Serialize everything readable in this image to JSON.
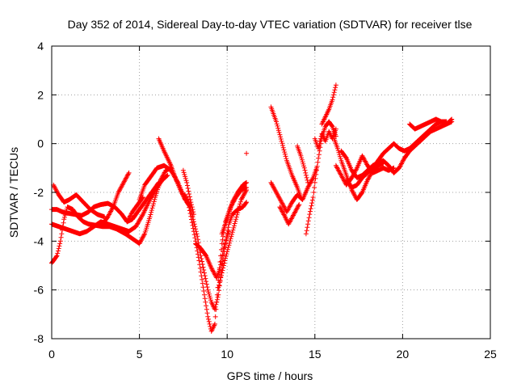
{
  "chart_data": {
    "type": "scatter",
    "title": "Day 352 of 2014, Sidereal Day-to-day VTEC variation (SDTVAR) for receiver tlse",
    "xlabel": "GPS time / hours",
    "ylabel": "SDTVAR / TECUs",
    "xlim": [
      0,
      25
    ],
    "ylim": [
      -8,
      4
    ],
    "xticks": [
      0,
      5,
      10,
      15,
      20,
      25
    ],
    "yticks": [
      -8,
      -6,
      -4,
      -2,
      0,
      2,
      4
    ],
    "grid": true,
    "marker": "plus",
    "color": "#ff0000",
    "tracks": [
      [
        [
          0.0,
          -4.9
        ],
        [
          0.3,
          -4.6
        ],
        [
          0.5,
          -4.0
        ],
        [
          0.7,
          -3.1
        ],
        [
          0.9,
          -2.6
        ],
        [
          1.2,
          -2.7
        ],
        [
          1.5,
          -3.0
        ],
        [
          1.8,
          -3.2
        ],
        [
          2.1,
          -3.3
        ],
        [
          2.5,
          -3.35
        ],
        [
          2.9,
          -3.4
        ],
        [
          3.3,
          -3.4
        ],
        [
          3.7,
          -3.5
        ],
        [
          4.2,
          -3.7
        ],
        [
          4.6,
          -3.9
        ],
        [
          5.0,
          -4.1
        ],
        [
          5.3,
          -3.7
        ],
        [
          5.6,
          -3.0
        ],
        [
          5.9,
          -2.2
        ],
        [
          6.2,
          -1.5
        ],
        [
          6.5,
          -1.1
        ],
        [
          6.8,
          -1.0
        ]
      ],
      [
        [
          0.0,
          -3.3
        ],
        [
          0.4,
          -3.4
        ],
        [
          0.8,
          -3.5
        ],
        [
          1.2,
          -3.6
        ],
        [
          1.6,
          -3.7
        ],
        [
          2.0,
          -3.6
        ],
        [
          2.4,
          -3.4
        ],
        [
          2.8,
          -3.2
        ],
        [
          3.2,
          -3.3
        ],
        [
          3.6,
          -3.4
        ],
        [
          4.0,
          -3.5
        ],
        [
          4.4,
          -3.6
        ],
        [
          4.8,
          -3.4
        ],
        [
          5.2,
          -2.9
        ],
        [
          5.6,
          -2.3
        ],
        [
          6.0,
          -1.8
        ],
        [
          6.3,
          -1.5
        ],
        [
          6.6,
          -1.3
        ]
      ],
      [
        [
          0.0,
          -2.7
        ],
        [
          0.3,
          -2.7
        ],
        [
          0.6,
          -2.8
        ],
        [
          0.9,
          -2.85
        ],
        [
          1.3,
          -2.9
        ],
        [
          1.7,
          -2.95
        ],
        [
          2.1,
          -2.8
        ],
        [
          2.4,
          -2.6
        ],
        [
          2.8,
          -2.5
        ],
        [
          3.2,
          -2.45
        ],
        [
          3.6,
          -2.6
        ],
        [
          4.0,
          -2.9
        ],
        [
          4.3,
          -3.2
        ],
        [
          4.6,
          -3.1
        ],
        [
          5.0,
          -2.7
        ],
        [
          5.4,
          -2.3
        ],
        [
          5.8,
          -1.9
        ],
        [
          6.1,
          -1.6
        ]
      ],
      [
        [
          0.1,
          -1.7
        ],
        [
          0.4,
          -2.1
        ],
        [
          0.7,
          -2.4
        ],
        [
          1.0,
          -2.3
        ],
        [
          1.4,
          -2.1
        ],
        [
          1.8,
          -2.4
        ],
        [
          2.2,
          -2.7
        ],
        [
          2.6,
          -2.9
        ],
        [
          3.0,
          -3.0
        ]
      ],
      [
        [
          2.9,
          -3.3
        ],
        [
          3.2,
          -3.0
        ],
        [
          3.5,
          -2.6
        ],
        [
          3.8,
          -2.0
        ],
        [
          4.1,
          -1.6
        ],
        [
          4.4,
          -1.2
        ]
      ],
      [
        [
          4.3,
          -3.2
        ],
        [
          4.6,
          -2.8
        ],
        [
          4.9,
          -2.5
        ],
        [
          5.2,
          -2.2
        ]
      ],
      [
        [
          5.0,
          -2.3
        ],
        [
          5.3,
          -1.7
        ],
        [
          5.7,
          -1.3
        ],
        [
          6.0,
          -1.0
        ],
        [
          6.4,
          -0.9
        ],
        [
          6.8,
          -1.1
        ],
        [
          7.2,
          -1.6
        ],
        [
          7.6,
          -2.3
        ]
      ],
      [
        [
          6.1,
          0.2
        ],
        [
          6.4,
          -0.3
        ],
        [
          6.8,
          -0.9
        ],
        [
          7.1,
          -1.5
        ],
        [
          7.4,
          -2.0
        ],
        [
          7.7,
          -2.4
        ],
        [
          7.9,
          -2.6
        ]
      ],
      [
        [
          7.6,
          -2.1
        ],
        [
          7.9,
          -2.6
        ],
        [
          8.1,
          -3.2
        ],
        [
          8.3,
          -3.8
        ],
        [
          8.5,
          -4.6
        ],
        [
          8.7,
          -5.3
        ],
        [
          8.9,
          -6.0
        ],
        [
          9.1,
          -6.5
        ],
        [
          9.3,
          -6.8
        ],
        [
          9.5,
          -6.2
        ],
        [
          9.7,
          -5.1
        ],
        [
          9.9,
          -4.1
        ],
        [
          10.1,
          -3.3
        ],
        [
          10.3,
          -2.9
        ],
        [
          10.6,
          -2.7
        ],
        [
          10.9,
          -2.6
        ],
        [
          11.1,
          -2.4
        ]
      ],
      [
        [
          7.8,
          -2.5
        ],
        [
          8.1,
          -3.6
        ],
        [
          8.4,
          -4.8
        ],
        [
          8.7,
          -6.2
        ],
        [
          8.9,
          -7.1
        ],
        [
          9.1,
          -7.7
        ],
        [
          9.3,
          -7.4
        ],
        [
          9.5,
          -5.6
        ],
        [
          9.7,
          -4.1
        ],
        [
          9.9,
          -3.2
        ],
        [
          10.2,
          -2.6
        ],
        [
          10.5,
          -2.2
        ],
        [
          10.8,
          -1.9
        ],
        [
          11.1,
          -1.8
        ]
      ],
      [
        [
          7.5,
          -1.1
        ],
        [
          7.7,
          -1.6
        ],
        [
          7.9,
          -2.3
        ],
        [
          8.1,
          -2.9
        ]
      ],
      [
        [
          8.2,
          -4.1
        ],
        [
          8.5,
          -4.3
        ],
        [
          8.8,
          -4.6
        ],
        [
          9.1,
          -5.1
        ],
        [
          9.4,
          -5.5
        ],
        [
          9.6,
          -5.1
        ],
        [
          9.8,
          -4.3
        ],
        [
          10.1,
          -3.6
        ]
      ],
      [
        [
          9.5,
          -5.9
        ],
        [
          9.7,
          -5.3
        ],
        [
          9.9,
          -4.7
        ],
        [
          10.2,
          -3.9
        ],
        [
          10.5,
          -3.1
        ],
        [
          10.8,
          -2.3
        ],
        [
          11.1,
          -1.9
        ]
      ],
      [
        [
          9.7,
          -3.7
        ],
        [
          10.0,
          -3.1
        ],
        [
          10.3,
          -2.4
        ],
        [
          10.6,
          -2.0
        ],
        [
          10.9,
          -1.7
        ],
        [
          11.1,
          -1.6
        ]
      ],
      [
        [
          11.1,
          -0.4
        ]
      ],
      [
        [
          12.5,
          1.5
        ],
        [
          12.8,
          0.9
        ],
        [
          13.1,
          0.1
        ],
        [
          13.4,
          -0.7
        ],
        [
          13.7,
          -1.3
        ],
        [
          14.0,
          -1.8
        ],
        [
          14.2,
          -2.2
        ]
      ],
      [
        [
          12.5,
          -1.6
        ],
        [
          12.8,
          -2.0
        ],
        [
          13.1,
          -2.4
        ],
        [
          13.4,
          -2.8
        ],
        [
          13.7,
          -2.4
        ],
        [
          14.0,
          -2.1
        ],
        [
          14.3,
          -2.3
        ],
        [
          14.6,
          -1.8
        ],
        [
          14.9,
          -1.4
        ],
        [
          15.1,
          -1.0
        ]
      ],
      [
        [
          13.0,
          -2.6
        ],
        [
          13.3,
          -3.0
        ],
        [
          13.5,
          -3.3
        ],
        [
          13.8,
          -2.9
        ],
        [
          14.1,
          -2.5
        ]
      ],
      [
        [
          14.0,
          -0.1
        ],
        [
          14.2,
          -0.5
        ],
        [
          14.4,
          -1.0
        ],
        [
          14.6,
          -1.6
        ]
      ],
      [
        [
          14.5,
          -3.7
        ],
        [
          14.7,
          -2.9
        ],
        [
          14.9,
          -2.2
        ],
        [
          15.0,
          -1.6
        ],
        [
          15.2,
          -0.6
        ],
        [
          15.4,
          0.3
        ],
        [
          15.6,
          0.7
        ],
        [
          15.8,
          0.9
        ],
        [
          16.0,
          0.7
        ],
        [
          16.2,
          0.3
        ]
      ],
      [
        [
          15.0,
          0.2
        ],
        [
          15.2,
          -0.2
        ],
        [
          15.4,
          0.4
        ],
        [
          15.6,
          0.1
        ],
        [
          15.8,
          0.5
        ],
        [
          16.0,
          0.2
        ],
        [
          16.2,
          0.6
        ]
      ],
      [
        [
          15.4,
          0.8
        ],
        [
          15.6,
          1.1
        ],
        [
          15.8,
          1.4
        ],
        [
          16.0,
          1.8
        ],
        [
          16.2,
          2.4
        ]
      ],
      [
        [
          16.1,
          0.2
        ],
        [
          16.3,
          -0.2
        ],
        [
          16.5,
          -0.7
        ],
        [
          16.8,
          -1.3
        ],
        [
          17.1,
          -1.9
        ],
        [
          17.4,
          -2.3
        ],
        [
          17.7,
          -2.0
        ],
        [
          18.0,
          -1.5
        ],
        [
          18.3,
          -1.1
        ],
        [
          18.6,
          -0.9
        ],
        [
          18.9,
          -0.8
        ]
      ],
      [
        [
          16.5,
          -0.3
        ],
        [
          16.8,
          -0.6
        ],
        [
          17.1,
          -1.1
        ],
        [
          17.4,
          -1.4
        ],
        [
          17.7,
          -1.3
        ],
        [
          18.0,
          -1.1
        ],
        [
          18.3,
          -0.9
        ],
        [
          18.6,
          -0.8
        ],
        [
          18.9,
          -0.7
        ],
        [
          19.2,
          -0.9
        ],
        [
          19.5,
          -1.2
        ],
        [
          19.8,
          -1.0
        ],
        [
          20.1,
          -0.6
        ],
        [
          20.4,
          -0.3
        ],
        [
          20.7,
          -0.1
        ],
        [
          21.0,
          0.1
        ],
        [
          21.3,
          0.3
        ],
        [
          21.6,
          0.5
        ],
        [
          21.9,
          0.6
        ],
        [
          22.2,
          0.7
        ],
        [
          22.5,
          0.8
        ],
        [
          22.8,
          1.0
        ]
      ],
      [
        [
          16.8,
          -1.5
        ],
        [
          17.1,
          -1.8
        ],
        [
          17.4,
          -1.7
        ],
        [
          17.7,
          -1.4
        ],
        [
          18.0,
          -1.2
        ],
        [
          18.3,
          -1.0
        ],
        [
          18.6,
          -0.7
        ],
        [
          18.9,
          -0.4
        ],
        [
          19.2,
          -0.2
        ],
        [
          19.5,
          0.0
        ],
        [
          19.8,
          -0.2
        ],
        [
          20.1,
          -0.3
        ],
        [
          20.4,
          -0.2
        ],
        [
          20.7,
          0.0
        ],
        [
          21.0,
          0.2
        ],
        [
          21.3,
          0.4
        ],
        [
          21.6,
          0.6
        ],
        [
          21.9,
          0.8
        ],
        [
          22.2,
          0.9
        ],
        [
          22.5,
          0.9
        ]
      ],
      [
        [
          16.2,
          -0.9
        ],
        [
          16.5,
          -1.3
        ],
        [
          16.8,
          -1.7
        ],
        [
          17.1,
          -1.4
        ],
        [
          17.4,
          -1.0
        ],
        [
          17.7,
          -0.5
        ],
        [
          18.0,
          -0.9
        ],
        [
          18.3,
          -1.2
        ],
        [
          18.6,
          -1.1
        ],
        [
          18.9,
          -1.0
        ],
        [
          19.2,
          -1.1
        ],
        [
          19.5,
          -1.0
        ]
      ],
      [
        [
          20.4,
          0.8
        ],
        [
          20.7,
          0.6
        ],
        [
          21.0,
          0.7
        ],
        [
          21.3,
          0.8
        ],
        [
          21.6,
          0.9
        ],
        [
          21.9,
          1.0
        ],
        [
          22.2,
          0.9
        ],
        [
          22.5,
          0.8
        ],
        [
          22.8,
          0.9
        ]
      ]
    ]
  }
}
